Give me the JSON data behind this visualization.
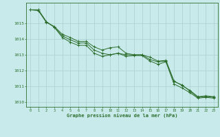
{
  "title": "Graphe pression niveau de la mer (hPa)",
  "background_color": "#c8eaea",
  "grid_color": "#a8d0d0",
  "line_color": "#2d6e2d",
  "xlim": [
    -0.5,
    23.5
  ],
  "ylim": [
    1009.7,
    1016.3
  ],
  "yticks": [
    1010,
    1011,
    1012,
    1013,
    1014,
    1015
  ],
  "xticks": [
    0,
    1,
    2,
    3,
    4,
    5,
    6,
    7,
    8,
    9,
    10,
    11,
    12,
    13,
    14,
    15,
    16,
    17,
    18,
    19,
    20,
    21,
    22,
    23
  ],
  "series1": [
    1015.85,
    1015.8,
    1015.05,
    1014.8,
    1014.3,
    1014.1,
    1013.85,
    1013.85,
    1013.5,
    1013.3,
    1013.45,
    1013.5,
    1013.1,
    1013.0,
    1013.0,
    1012.85,
    1012.6,
    1012.65,
    1011.35,
    1011.05,
    1010.75,
    1010.35,
    1010.4,
    1010.35
  ],
  "series2": [
    1015.85,
    1015.85,
    1015.1,
    1014.75,
    1014.2,
    1013.95,
    1013.75,
    1013.75,
    1013.3,
    1013.1,
    1013.0,
    1013.1,
    1013.0,
    1013.0,
    1013.0,
    1012.7,
    1012.55,
    1012.6,
    1011.3,
    1011.1,
    1010.7,
    1010.3,
    1010.35,
    1010.3
  ],
  "series3": [
    1015.85,
    1015.85,
    1015.1,
    1014.75,
    1014.1,
    1013.8,
    1013.6,
    1013.6,
    1013.1,
    1012.9,
    1013.0,
    1013.1,
    1012.9,
    1012.95,
    1012.95,
    1012.6,
    1012.4,
    1012.55,
    1011.15,
    1010.9,
    1010.6,
    1010.25,
    1010.3,
    1010.25
  ]
}
